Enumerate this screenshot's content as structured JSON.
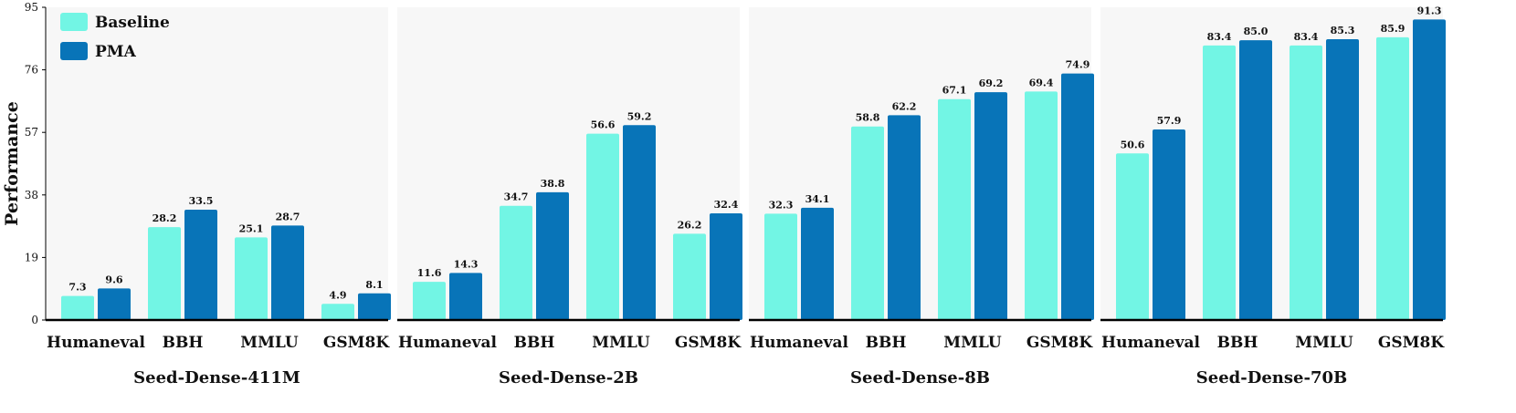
{
  "chart_data": {
    "type": "bar",
    "ylabel": "Performance",
    "ylim": [
      0,
      95
    ],
    "yticks": [
      0,
      19,
      38,
      57,
      76,
      95
    ],
    "categories": [
      "Humaneval",
      "BBH",
      "MMLU",
      "GSM8K"
    ],
    "legend": {
      "position": "top-left",
      "entries": [
        {
          "name": "Baseline",
          "color": "#72f5e4"
        },
        {
          "name": "PMA",
          "color": "#0874b8"
        }
      ]
    },
    "panels": [
      {
        "title": "Seed-Dense-411M",
        "series": [
          {
            "name": "Baseline",
            "values": [
              7.3,
              28.2,
              25.1,
              4.9
            ]
          },
          {
            "name": "PMA",
            "values": [
              9.6,
              33.5,
              28.7,
              8.1
            ]
          }
        ]
      },
      {
        "title": "Seed-Dense-2B",
        "series": [
          {
            "name": "Baseline",
            "values": [
              11.6,
              34.7,
              56.6,
              26.2
            ]
          },
          {
            "name": "PMA",
            "values": [
              14.3,
              38.8,
              59.2,
              32.4
            ]
          }
        ]
      },
      {
        "title": "Seed-Dense-8B",
        "series": [
          {
            "name": "Baseline",
            "values": [
              32.3,
              58.8,
              67.1,
              69.4
            ]
          },
          {
            "name": "PMA",
            "values": [
              34.1,
              62.2,
              69.2,
              74.9
            ]
          }
        ]
      },
      {
        "title": "Seed-Dense-70B",
        "series": [
          {
            "name": "Baseline",
            "values": [
              50.6,
              83.4,
              83.4,
              85.9
            ]
          },
          {
            "name": "PMA",
            "values": [
              57.9,
              85.0,
              85.3,
              91.3
            ]
          }
        ]
      }
    ]
  }
}
